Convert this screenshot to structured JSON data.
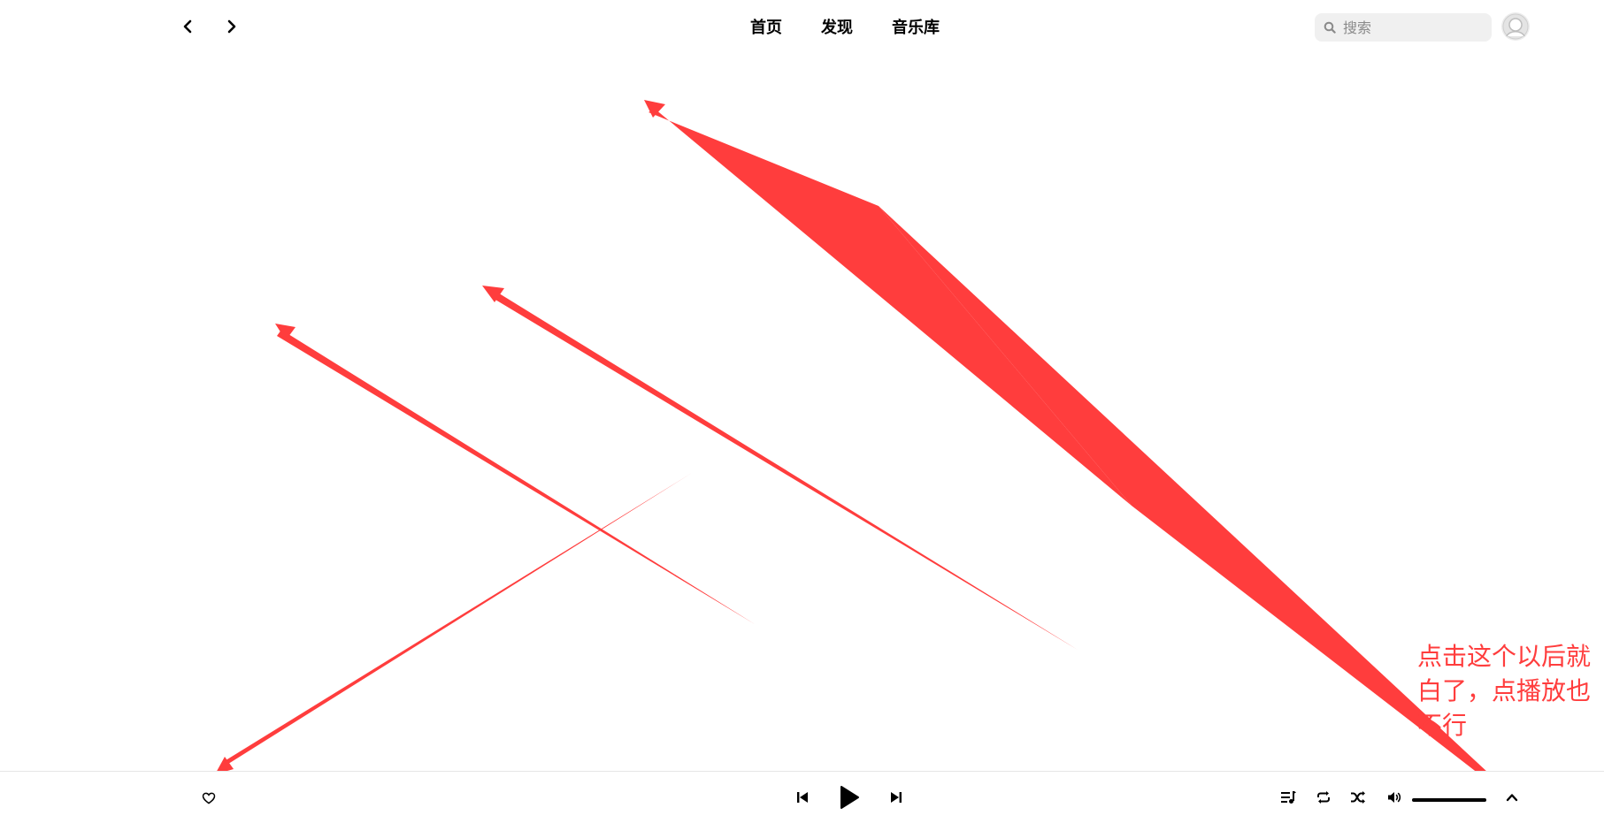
{
  "header": {
    "back_icon": "chevron-left-icon",
    "forward_icon": "chevron-right-icon",
    "tabs": [
      {
        "label": "首页"
      },
      {
        "label": "发现"
      },
      {
        "label": "音乐库"
      }
    ],
    "search": {
      "placeholder": "搜索",
      "value": "",
      "icon": "search-icon"
    },
    "avatar_icon": "avatar-icon"
  },
  "annotation": {
    "text": "点击这个以后就白了，点播放也不行",
    "color": "#ff3d3d"
  },
  "player": {
    "like_icon": "heart-icon",
    "prev_icon": "skip-previous-icon",
    "play_icon": "play-icon",
    "next_icon": "skip-next-icon",
    "playlist_icon": "playlist-icon",
    "repeat_icon": "repeat-icon",
    "shuffle_icon": "shuffle-icon",
    "volume_icon": "volume-icon",
    "volume_level": 1.0,
    "expand_icon": "chevron-up-icon"
  }
}
